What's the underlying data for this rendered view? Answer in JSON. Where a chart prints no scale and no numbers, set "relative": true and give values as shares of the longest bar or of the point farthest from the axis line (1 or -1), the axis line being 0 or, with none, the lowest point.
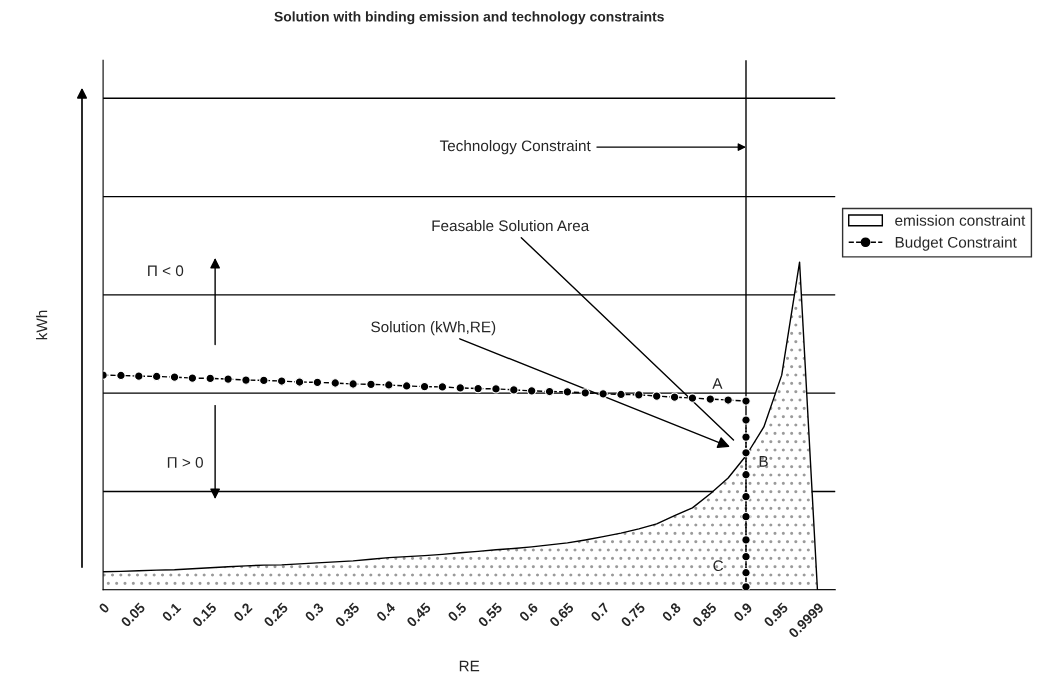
{
  "chart_data": {
    "type": "area",
    "title": "Solution with binding emission and technology constraints",
    "xlabel": "RE",
    "ylabel": "kWh",
    "relative": true,
    "categories": [
      "0",
      null,
      "0.05",
      null,
      "0.1",
      null,
      "0.15",
      null,
      "0.2",
      null,
      "0.25",
      null,
      "0.3",
      null,
      "0.35",
      null,
      "0.4",
      null,
      "0.45",
      null,
      "0.5",
      null,
      "0.55",
      null,
      "0.6",
      null,
      "0.65",
      null,
      "0.7",
      null,
      "0.75",
      null,
      "0.8",
      null,
      "0.85",
      null,
      "0.9",
      null,
      "0.95",
      null,
      "0.9999"
    ],
    "series": [
      {
        "name": "emission constraint",
        "color": "#ffffff",
        "values": [
          0.055,
          0.056,
          0.058,
          0.06,
          0.061,
          0.064,
          0.067,
          0.07,
          0.073,
          0.075,
          0.076,
          0.079,
          0.082,
          0.085,
          0.088,
          0.093,
          0.098,
          0.101,
          0.104,
          0.108,
          0.113,
          0.117,
          0.122,
          0.126,
          0.131,
          0.137,
          0.143,
          0.152,
          0.162,
          0.173,
          0.186,
          0.201,
          0.226,
          0.25,
          0.293,
          0.341,
          0.409,
          0.497,
          0.655,
          1,
          0
        ]
      },
      {
        "name": "Budget Constraint",
        "type": "line",
        "color": "#000000",
        "marker": "circle",
        "line_style": "dashed",
        "values": [
          0.655,
          0.654,
          0.652,
          0.651,
          0.649,
          0.646,
          0.645,
          0.643,
          0.64,
          0.639,
          0.637,
          0.634,
          0.633,
          0.631,
          0.628,
          0.627,
          0.625,
          0.622,
          0.62,
          0.619,
          0.616,
          0.614,
          0.613,
          0.61,
          0.607,
          0.605,
          0.604,
          0.601,
          0.598,
          0.596,
          0.595,
          0.591,
          0.588,
          0.585,
          0.582,
          0.579,
          0.576,
          null,
          null,
          null,
          null
        ]
      },
      {
        "type": "line",
        "color": "#000000",
        "marker": "circle",
        "line_style": "dotted",
        "x": [
          "0.9",
          "0.9",
          "0.9",
          "0.9",
          "0.9",
          "0.9",
          "0.9",
          "0.9",
          "0.9",
          "0.9"
        ],
        "values": [
          0.518,
          0.466,
          0.418,
          0.351,
          0.284,
          0.223,
          0.152,
          0.101,
          0.052,
          0.009
        ]
      }
    ],
    "ref_lines": [
      {
        "axis": "x",
        "value": "0.9",
        "label": "Technology Constraint",
        "color": "#000000"
      }
    ],
    "annotations": [
      "Feasable Solution Area",
      "Solution (kWh,RE)",
      "Π < 0",
      "Π > 0",
      "A",
      "B",
      "C"
    ],
    "grid": "y",
    "legend": "right"
  }
}
